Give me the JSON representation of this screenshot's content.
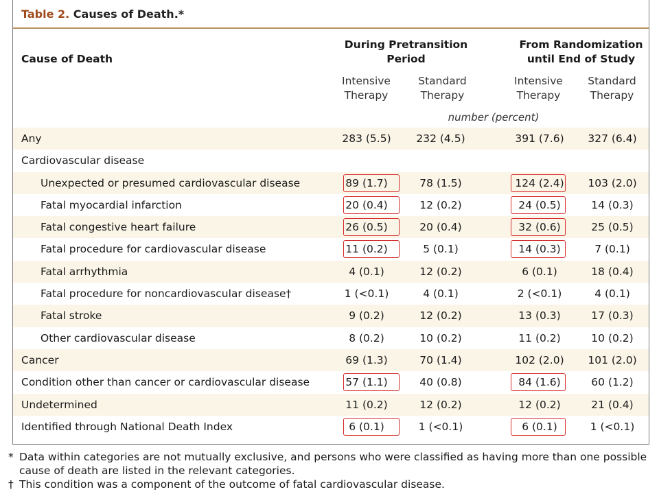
{
  "title": {
    "prefix": "Table 2.",
    "rest": "Causes of Death.*"
  },
  "header": {
    "cause_label": "Cause of Death",
    "group_pretransition": [
      "During Pretransition",
      "Period"
    ],
    "group_randomization": [
      "From Randomization",
      "until End of Study"
    ],
    "sub_intensive": [
      "Intensive",
      "Therapy"
    ],
    "sub_standard": [
      "Standard",
      "Therapy"
    ],
    "units": "number (percent)"
  },
  "rows": [
    {
      "label": "Any",
      "indent": false,
      "shaded": true,
      "values": [
        "283 (5.5)",
        "232 (4.5)",
        "391 (7.6)",
        "327 (6.4)"
      ],
      "boxed": [
        false,
        false
      ]
    },
    {
      "label": "Cardiovascular disease",
      "indent": false,
      "shaded": false,
      "values": [
        "",
        "",
        "",
        ""
      ],
      "boxed": [
        false,
        false
      ]
    },
    {
      "label": "Unexpected or presumed cardiovascular disease",
      "indent": true,
      "shaded": true,
      "values": [
        "89 (1.7)",
        "78 (1.5)",
        "124 (2.4)",
        "103 (2.0)"
      ],
      "boxed": [
        true,
        true
      ]
    },
    {
      "label": "Fatal myocardial infarction",
      "indent": true,
      "shaded": false,
      "values": [
        "20 (0.4)",
        "12 (0.2)",
        "24 (0.5)",
        "14 (0.3)"
      ],
      "boxed": [
        true,
        true
      ]
    },
    {
      "label": "Fatal congestive heart failure",
      "indent": true,
      "shaded": true,
      "values": [
        "26 (0.5)",
        "20 (0.4)",
        "32 (0.6)",
        "25 (0.5)"
      ],
      "boxed": [
        true,
        true
      ]
    },
    {
      "label": "Fatal procedure for cardiovascular disease",
      "indent": true,
      "shaded": false,
      "values": [
        "11 (0.2)",
        "5 (0.1)",
        "14 (0.3)",
        "7 (0.1)"
      ],
      "boxed": [
        true,
        true
      ]
    },
    {
      "label": "Fatal arrhythmia",
      "indent": true,
      "shaded": true,
      "values": [
        "4 (0.1)",
        "12 (0.2)",
        "6 (0.1)",
        "18 (0.4)"
      ],
      "boxed": [
        false,
        false
      ]
    },
    {
      "label": "Fatal procedure for noncardiovascular disease†",
      "indent": true,
      "shaded": false,
      "values": [
        "1 (<0.1)",
        "4 (0.1)",
        "2 (<0.1)",
        "4 (0.1)"
      ],
      "boxed": [
        false,
        false
      ]
    },
    {
      "label": "Fatal stroke",
      "indent": true,
      "shaded": true,
      "values": [
        "9 (0.2)",
        "12 (0.2)",
        "13 (0.3)",
        "17 (0.3)"
      ],
      "boxed": [
        false,
        false
      ]
    },
    {
      "label": "Other cardiovascular disease",
      "indent": true,
      "shaded": false,
      "values": [
        "8 (0.2)",
        "10 (0.2)",
        "11 (0.2)",
        "10 (0.2)"
      ],
      "boxed": [
        false,
        false
      ]
    },
    {
      "label": "Cancer",
      "indent": false,
      "shaded": true,
      "values": [
        "69 (1.3)",
        "70 (1.4)",
        "102 (2.0)",
        "101 (2.0)"
      ],
      "boxed": [
        false,
        false
      ]
    },
    {
      "label": "Condition other than cancer or cardiovascular disease",
      "indent": false,
      "shaded": false,
      "values": [
        "57 (1.1)",
        "40 (0.8)",
        "84 (1.6)",
        "60 (1.2)"
      ],
      "boxed": [
        true,
        true
      ]
    },
    {
      "label": "Undetermined",
      "indent": false,
      "shaded": true,
      "values": [
        "11 (0.2)",
        "12 (0.2)",
        "12 (0.2)",
        "21 (0.4)"
      ],
      "boxed": [
        false,
        false
      ]
    },
    {
      "label": "Identified through National Death Index",
      "indent": false,
      "shaded": false,
      "values": [
        "6 (0.1)",
        "1 (<0.1)",
        "6 (0.1)",
        "1 (<0.1)"
      ],
      "boxed": [
        true,
        true
      ]
    }
  ],
  "footnotes": [
    {
      "mark": "*",
      "text": "Data within categories are not mutually exclusive, and persons who were classified as having more than one possible cause of death are listed in the relevant categories."
    },
    {
      "mark": "†",
      "text": "This condition was a component of the outcome of fatal cardiovascular disease."
    }
  ],
  "colors": {
    "title_accent": "#a04a1c",
    "rule": "#b9935d",
    "row_shade": "#fbf5e8",
    "highlight_box": "#d42a2a"
  }
}
